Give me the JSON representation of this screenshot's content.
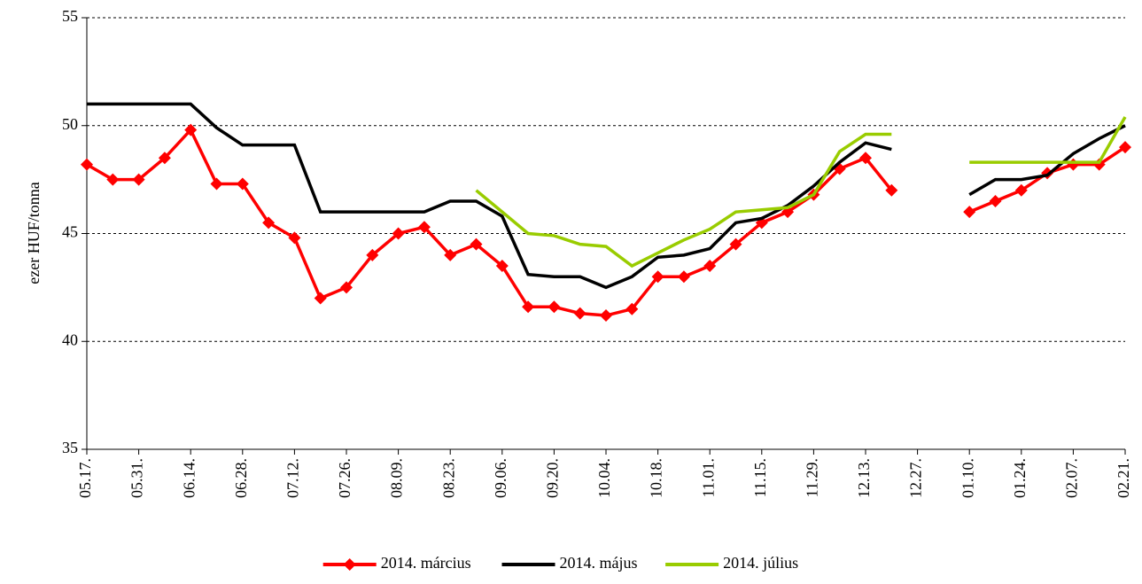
{
  "chart_data": {
    "type": "line",
    "y_label": "ezer HUF/tonna",
    "categories": [
      "05.17.",
      null,
      "05.31.",
      null,
      "06.14.",
      null,
      "06.28.",
      null,
      "07.12.",
      null,
      "07.26.",
      null,
      "08.09.",
      null,
      "08.23.",
      null,
      "09.06.",
      null,
      "09.20.",
      null,
      "10.04.",
      null,
      "10.18.",
      null,
      "11.01.",
      null,
      "11.15.",
      null,
      "11.29.",
      null,
      "12.13.",
      null,
      "12.27.",
      null,
      "01.10.",
      null,
      "01.24.",
      null,
      "02.07.",
      null,
      "02.21."
    ],
    "series": [
      {
        "name": "2014. március",
        "color": "#ff0000",
        "marker": "diamond",
        "values": [
          48.2,
          47.5,
          47.5,
          48.5,
          49.8,
          47.3,
          47.3,
          45.5,
          44.8,
          42,
          42.5,
          44,
          45,
          45.3,
          44,
          44.5,
          43.5,
          41.6,
          41.6,
          41.3,
          41.2,
          41.5,
          43,
          43,
          43.5,
          44.5,
          45.5,
          46,
          46.8,
          48,
          48.5,
          47,
          null,
          null,
          46,
          46.5,
          47,
          47.8,
          48.2,
          48.2,
          49
        ]
      },
      {
        "name": "2014. május",
        "color": "#000000",
        "values": [
          51,
          51,
          51,
          51,
          51,
          49.9,
          49.1,
          49.1,
          49.1,
          46,
          46,
          46,
          46,
          46,
          46.5,
          46.5,
          45.8,
          43.1,
          43,
          43,
          42.5,
          43,
          43.9,
          44,
          44.3,
          45.5,
          45.7,
          46.3,
          47.2,
          48.3,
          49.2,
          48.9,
          null,
          null,
          46.8,
          47.5,
          47.5,
          47.7,
          48.7,
          49.4,
          50
        ]
      },
      {
        "name": "2014. július",
        "color": "#99cc00",
        "values": [
          null,
          null,
          null,
          null,
          null,
          null,
          null,
          null,
          null,
          null,
          null,
          null,
          null,
          null,
          null,
          47,
          46,
          45,
          44.9,
          44.5,
          44.4,
          43.5,
          44.1,
          44.7,
          45.2,
          46,
          46.1,
          46.2,
          46.8,
          48.8,
          49.6,
          49.6,
          null,
          null,
          48.3,
          48.3,
          48.3,
          48.3,
          48.3,
          48.3,
          50.4
        ]
      }
    ],
    "ylim": [
      35,
      55
    ],
    "yticks": [
      35,
      40,
      45,
      50,
      55
    ],
    "grid": true,
    "legend": "bottom"
  }
}
